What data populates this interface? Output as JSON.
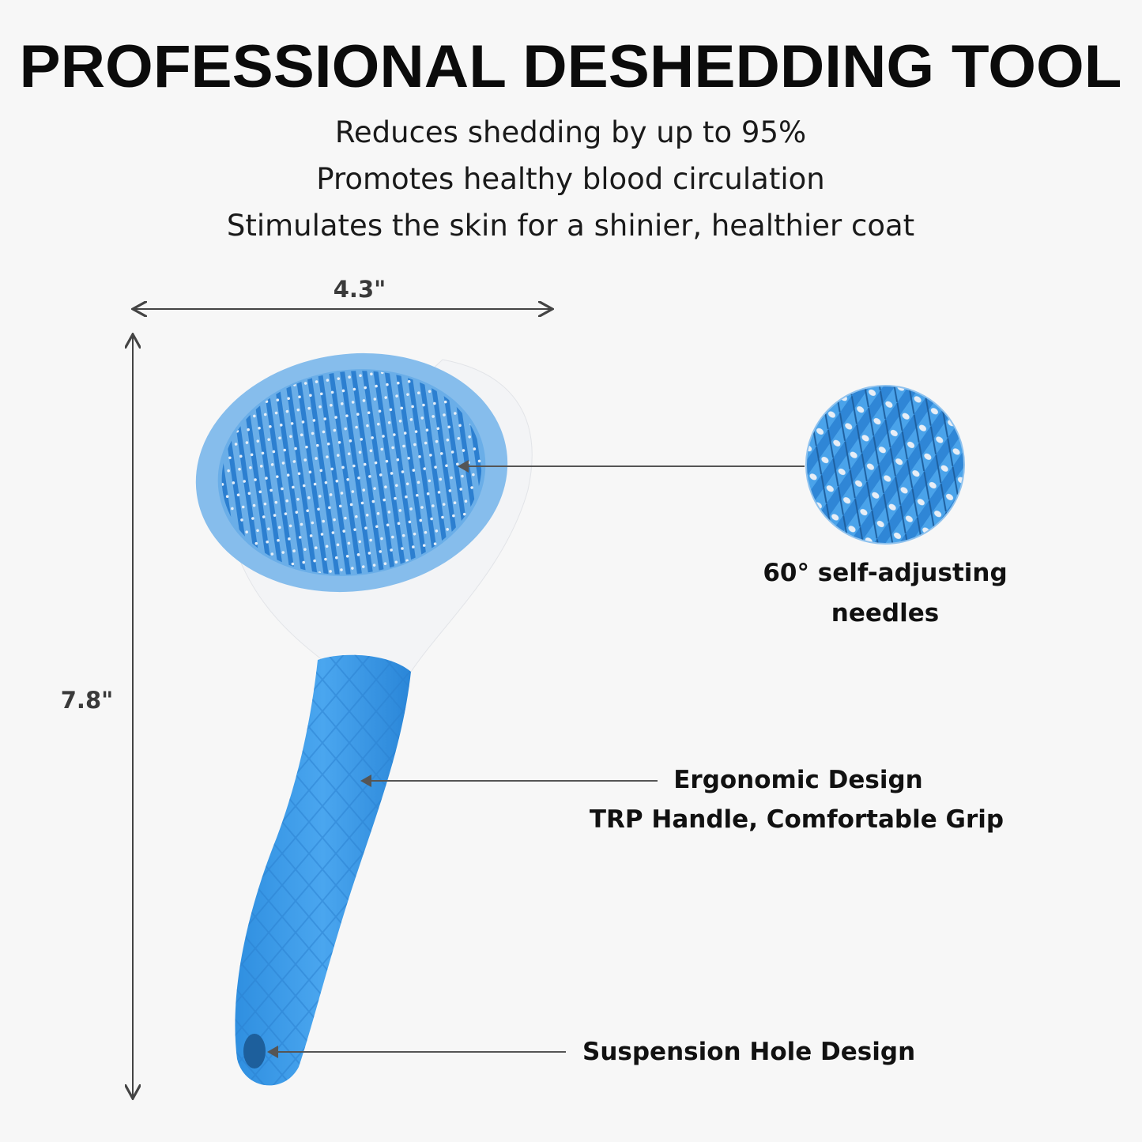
{
  "title": "PROFESSIONAL DESHEDDING TOOL",
  "benefits": [
    "Reduces shedding by up to 95%",
    "Promotes healthy blood circulation",
    "Stimulates the skin for a shinier, healthier coat"
  ],
  "dimensions": {
    "width": "4.3\"",
    "height": "7.8\""
  },
  "callouts": {
    "needles": [
      "60° self-adjusting",
      "needles"
    ],
    "handle": [
      "Ergonomic Design",
      "TRP Handle, Comfortable Grip"
    ],
    "hole": "Suspension Hole Design"
  },
  "colors": {
    "background": "#f7f7f7",
    "brush_blue": "#3d9be6",
    "head_blue": "#7fb8ea",
    "text": "#111111",
    "arrow": "#444444"
  }
}
